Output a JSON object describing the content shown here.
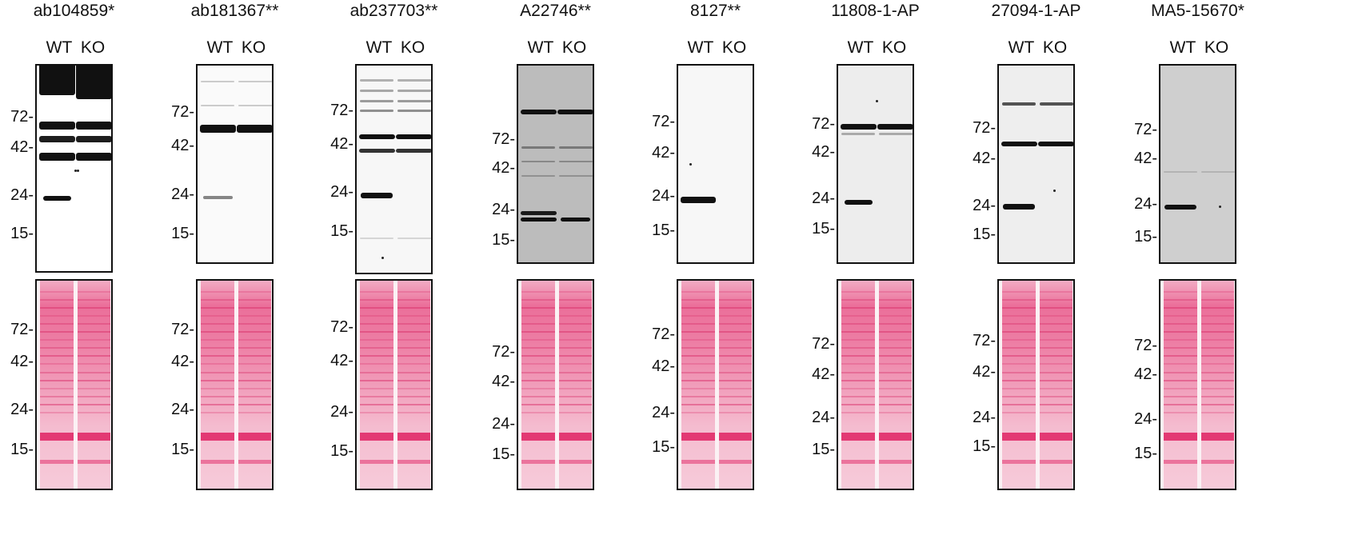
{
  "mw_markers": [
    "72-",
    "42-",
    "24-",
    "15-"
  ],
  "lane_labels": {
    "wt": "WT",
    "ko": "KO"
  },
  "colors": {
    "blot_border": "#111111",
    "ponceau": "#e8588a",
    "band": "#111111"
  },
  "panels": [
    {
      "antibody": "ab104859*"
    },
    {
      "antibody": "ab181367**"
    },
    {
      "antibody": "ab237703**"
    },
    {
      "antibody": "A22746**"
    },
    {
      "antibody": "8127**"
    },
    {
      "antibody": "11808-1-AP"
    },
    {
      "antibody": "27094-1-AP"
    },
    {
      "antibody": "MA5-15670*"
    }
  ]
}
